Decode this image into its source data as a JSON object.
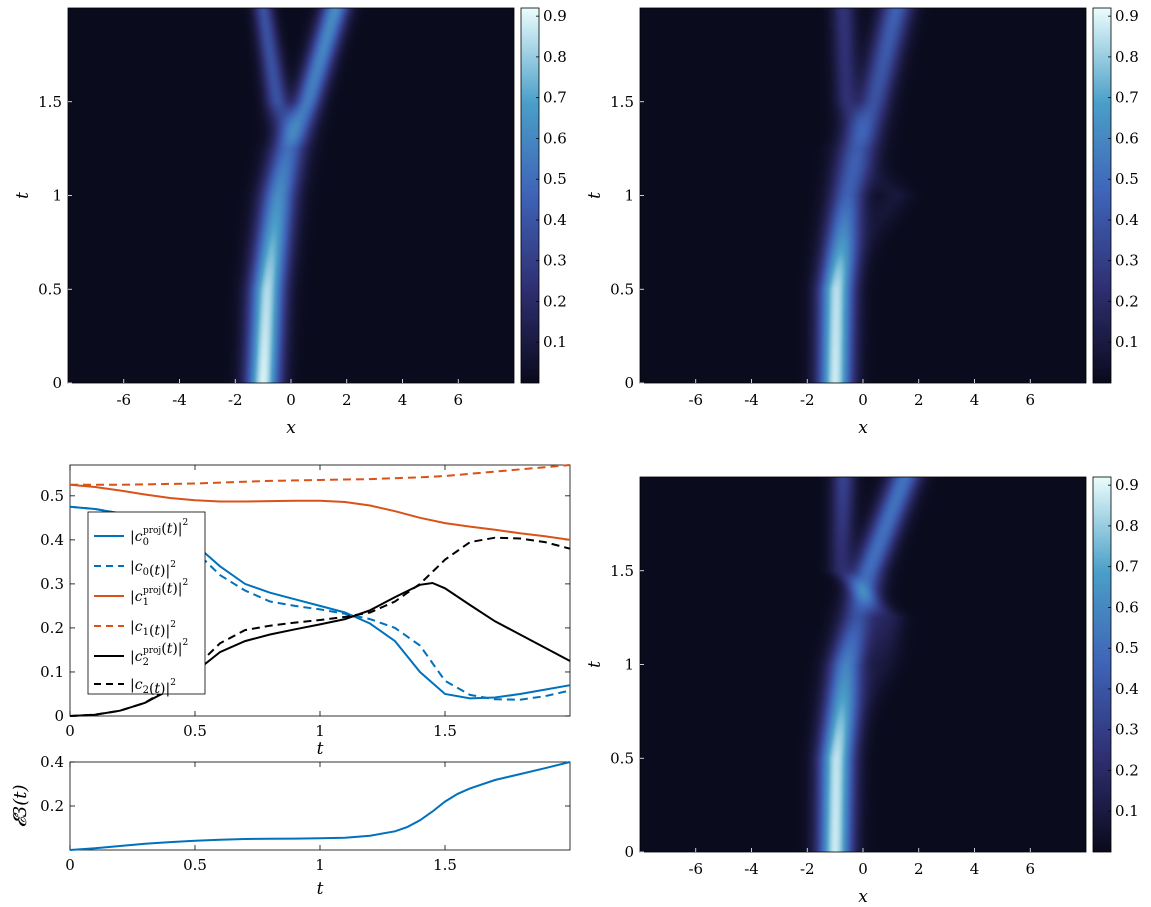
{
  "colors": {
    "c0_blue": "#0072BD",
    "c1_orange": "#D95319",
    "c2_black": "#000000",
    "colormap": [
      "#0b0b1e",
      "#2f2f72",
      "#3f63b8",
      "#4a9fc8",
      "#e8fbfb"
    ]
  },
  "chart_data": [
    {
      "id": "heatmap-top-left",
      "type": "heatmap",
      "title": "",
      "xlabel": "x",
      "ylabel": "t",
      "xlim": [
        -8,
        8
      ],
      "ylim": [
        0,
        2
      ],
      "xticks": [
        -6,
        -4,
        -2,
        0,
        2,
        4,
        6
      ],
      "yticks": [
        0,
        0.5,
        1,
        1.5
      ],
      "colorbar": {
        "ticks": [
          0.1,
          0.2,
          0.3,
          0.4,
          0.5,
          0.6,
          0.7,
          0.8,
          0.9
        ],
        "range": [
          0,
          0.92
        ]
      },
      "peaks": [
        {
          "t": 0.0,
          "components": [
            {
              "x": -1.0,
              "amp": 0.9,
              "width": 0.42
            }
          ]
        },
        {
          "t": 0.5,
          "components": [
            {
              "x": -0.85,
              "amp": 0.84,
              "width": 0.44
            }
          ]
        },
        {
          "t": 1.0,
          "components": [
            {
              "x": -0.45,
              "amp": 0.62,
              "width": 0.45
            }
          ]
        },
        {
          "t": 1.25,
          "components": [
            {
              "x": -0.1,
              "amp": 0.5,
              "width": 0.45
            }
          ]
        },
        {
          "t": 1.5,
          "components": [
            {
              "x": 0.6,
              "amp": 0.55,
              "width": 0.35
            },
            {
              "x": -0.5,
              "amp": 0.38,
              "width": 0.3
            }
          ]
        },
        {
          "t": 2.0,
          "components": [
            {
              "x": 1.6,
              "amp": 0.62,
              "width": 0.35
            },
            {
              "x": -1.0,
              "amp": 0.38,
              "width": 0.25
            }
          ]
        }
      ]
    },
    {
      "id": "heatmap-top-right",
      "type": "heatmap",
      "title": "",
      "xlabel": "x",
      "ylabel": "t",
      "xlim": [
        -8,
        8
      ],
      "ylim": [
        0,
        2
      ],
      "xticks": [
        -6,
        -4,
        -2,
        0,
        2,
        4,
        6
      ],
      "yticks": [
        0,
        0.5,
        1,
        1.5
      ],
      "colorbar": {
        "ticks": [
          0.1,
          0.2,
          0.3,
          0.4,
          0.5,
          0.6,
          0.7,
          0.8,
          0.9
        ],
        "range": [
          0,
          0.92
        ]
      },
      "peaks": [
        {
          "t": 0.0,
          "components": [
            {
              "x": -1.0,
              "amp": 0.88,
              "width": 0.42
            }
          ]
        },
        {
          "t": 0.5,
          "components": [
            {
              "x": -0.95,
              "amp": 0.85,
              "width": 0.44
            }
          ]
        },
        {
          "t": 1.0,
          "components": [
            {
              "x": -0.55,
              "amp": 0.45,
              "width": 0.45
            },
            {
              "x": 1.2,
              "amp": 0.08,
              "width": 0.4
            }
          ]
        },
        {
          "t": 1.25,
          "components": [
            {
              "x": -0.2,
              "amp": 0.42,
              "width": 0.5
            }
          ]
        },
        {
          "t": 1.5,
          "components": [
            {
              "x": 0.4,
              "amp": 0.38,
              "width": 0.4
            },
            {
              "x": -0.6,
              "amp": 0.22,
              "width": 0.3
            }
          ]
        },
        {
          "t": 2.0,
          "components": [
            {
              "x": 1.2,
              "amp": 0.45,
              "width": 0.4
            },
            {
              "x": -0.7,
              "amp": 0.25,
              "width": 0.3
            }
          ]
        }
      ]
    },
    {
      "id": "line-coefficients",
      "type": "line",
      "title": "",
      "xlabel": "t",
      "ylabel": "",
      "xlim": [
        0,
        2
      ],
      "ylim": [
        0,
        0.57
      ],
      "xticks": [
        0,
        0.5,
        1,
        1.5
      ],
      "yticks": [
        0,
        0.1,
        0.2,
        0.3,
        0.4,
        0.5
      ],
      "legend_position": "left",
      "series": [
        {
          "name": "|c0proj(t)|²",
          "color": "#0072BD",
          "dash": "solid",
          "x": [
            0,
            0.1,
            0.2,
            0.3,
            0.4,
            0.5,
            0.6,
            0.7,
            0.8,
            0.9,
            1.0,
            1.1,
            1.2,
            1.3,
            1.4,
            1.5,
            1.6,
            1.7,
            1.8,
            1.9,
            2.0
          ],
          "y": [
            0.475,
            0.47,
            0.46,
            0.44,
            0.42,
            0.39,
            0.34,
            0.3,
            0.28,
            0.265,
            0.25,
            0.235,
            0.21,
            0.17,
            0.1,
            0.05,
            0.04,
            0.042,
            0.05,
            0.06,
            0.07
          ]
        },
        {
          "name": "|c0(t)|²",
          "color": "#0072BD",
          "dash": "dashed",
          "x": [
            0,
            0.1,
            0.2,
            0.3,
            0.4,
            0.5,
            0.6,
            0.7,
            0.8,
            0.9,
            1.0,
            1.1,
            1.2,
            1.3,
            1.4,
            1.5,
            1.6,
            1.7,
            1.8,
            1.9,
            2.0
          ],
          "y": [
            0.475,
            0.47,
            0.46,
            0.44,
            0.41,
            0.375,
            0.32,
            0.285,
            0.26,
            0.25,
            0.242,
            0.232,
            0.22,
            0.2,
            0.16,
            0.08,
            0.048,
            0.038,
            0.037,
            0.045,
            0.058
          ]
        },
        {
          "name": "|c1proj(t)|²",
          "color": "#D95319",
          "dash": "solid",
          "x": [
            0,
            0.1,
            0.2,
            0.3,
            0.4,
            0.5,
            0.6,
            0.7,
            0.8,
            0.9,
            1.0,
            1.1,
            1.2,
            1.3,
            1.4,
            1.5,
            1.6,
            1.7,
            1.8,
            1.9,
            2.0
          ],
          "y": [
            0.525,
            0.52,
            0.512,
            0.503,
            0.495,
            0.49,
            0.487,
            0.487,
            0.488,
            0.489,
            0.489,
            0.486,
            0.478,
            0.465,
            0.45,
            0.438,
            0.43,
            0.423,
            0.415,
            0.408,
            0.4
          ]
        },
        {
          "name": "|c1(t)|²",
          "color": "#D95319",
          "dash": "dashed",
          "x": [
            0,
            0.1,
            0.2,
            0.3,
            0.4,
            0.5,
            0.6,
            0.7,
            0.8,
            0.9,
            1.0,
            1.1,
            1.2,
            1.3,
            1.4,
            1.5,
            1.6,
            1.7,
            1.8,
            1.9,
            2.0
          ],
          "y": [
            0.525,
            0.525,
            0.525,
            0.526,
            0.527,
            0.528,
            0.53,
            0.532,
            0.534,
            0.535,
            0.536,
            0.537,
            0.538,
            0.54,
            0.542,
            0.545,
            0.55,
            0.555,
            0.56,
            0.565,
            0.57
          ]
        },
        {
          "name": "|c2proj(t)|²",
          "color": "#000000",
          "dash": "solid",
          "x": [
            0,
            0.1,
            0.2,
            0.3,
            0.4,
            0.5,
            0.6,
            0.7,
            0.8,
            0.9,
            1.0,
            1.1,
            1.2,
            1.3,
            1.4,
            1.45,
            1.5,
            1.6,
            1.7,
            1.8,
            1.9,
            2.0
          ],
          "y": [
            0.0,
            0.003,
            0.012,
            0.03,
            0.06,
            0.1,
            0.145,
            0.17,
            0.185,
            0.197,
            0.208,
            0.22,
            0.24,
            0.27,
            0.298,
            0.302,
            0.29,
            0.252,
            0.215,
            0.185,
            0.155,
            0.125
          ]
        },
        {
          "name": "|c2(t)|²",
          "color": "#000000",
          "dash": "dashed",
          "x": [
            0,
            0.1,
            0.2,
            0.3,
            0.4,
            0.5,
            0.6,
            0.7,
            0.8,
            0.9,
            1.0,
            1.1,
            1.2,
            1.3,
            1.4,
            1.5,
            1.6,
            1.7,
            1.8,
            1.9,
            2.0
          ],
          "y": [
            0.0,
            0.003,
            0.012,
            0.03,
            0.065,
            0.11,
            0.165,
            0.195,
            0.205,
            0.212,
            0.218,
            0.225,
            0.235,
            0.26,
            0.3,
            0.355,
            0.395,
            0.405,
            0.403,
            0.395,
            0.38
          ]
        }
      ]
    },
    {
      "id": "line-error",
      "type": "line",
      "title": "",
      "xlabel": "t",
      "ylabel": "𝓔3(t)",
      "xlim": [
        0,
        2
      ],
      "ylim": [
        0,
        0.4
      ],
      "xticks": [
        0,
        0.5,
        1,
        1.5
      ],
      "yticks": [
        0.2,
        0.4
      ],
      "series": [
        {
          "name": "",
          "color": "#0072BD",
          "dash": "solid",
          "x": [
            0,
            0.1,
            0.2,
            0.3,
            0.4,
            0.5,
            0.6,
            0.7,
            0.8,
            0.9,
            1.0,
            1.1,
            1.2,
            1.3,
            1.35,
            1.4,
            1.45,
            1.5,
            1.55,
            1.6,
            1.7,
            1.8,
            1.9,
            2.0
          ],
          "y": [
            0.0,
            0.008,
            0.018,
            0.028,
            0.036,
            0.042,
            0.047,
            0.05,
            0.051,
            0.052,
            0.053,
            0.056,
            0.065,
            0.085,
            0.105,
            0.135,
            0.175,
            0.22,
            0.255,
            0.28,
            0.318,
            0.345,
            0.372,
            0.4
          ]
        }
      ]
    },
    {
      "id": "heatmap-bottom-right",
      "type": "heatmap",
      "title": "",
      "xlabel": "x",
      "ylabel": "t",
      "xlim": [
        -8,
        8
      ],
      "ylim": [
        0,
        2
      ],
      "xticks": [
        -6,
        -4,
        -2,
        0,
        2,
        4,
        6
      ],
      "yticks": [
        0,
        0.5,
        1,
        1.5
      ],
      "colorbar": {
        "ticks": [
          0.1,
          0.2,
          0.3,
          0.4,
          0.5,
          0.6,
          0.7,
          0.8,
          0.9
        ],
        "range": [
          0,
          0.92
        ]
      },
      "peaks": [
        {
          "t": 0.0,
          "components": [
            {
              "x": -1.0,
              "amp": 0.88,
              "width": 0.42
            }
          ]
        },
        {
          "t": 0.5,
          "components": [
            {
              "x": -0.95,
              "amp": 0.86,
              "width": 0.44
            }
          ]
        },
        {
          "t": 1.0,
          "components": [
            {
              "x": -0.6,
              "amp": 0.58,
              "width": 0.45
            },
            {
              "x": 0.7,
              "amp": 0.08,
              "width": 0.4
            }
          ]
        },
        {
          "t": 1.25,
          "components": [
            {
              "x": -0.2,
              "amp": 0.38,
              "width": 0.45
            },
            {
              "x": 0.9,
              "amp": 0.15,
              "width": 0.4
            }
          ]
        },
        {
          "t": 1.5,
          "components": [
            {
              "x": 0.2,
              "amp": 0.5,
              "width": 0.4
            },
            {
              "x": -0.8,
              "amp": 0.2,
              "width": 0.3
            }
          ]
        },
        {
          "t": 2.0,
          "components": [
            {
              "x": 1.5,
              "amp": 0.52,
              "width": 0.4
            },
            {
              "x": -0.7,
              "amp": 0.32,
              "width": 0.3
            }
          ]
        }
      ]
    }
  ],
  "legend": {
    "entries": [
      {
        "base": "c",
        "sub": "0",
        "sup": "proj",
        "paren": "(t)",
        "power": "2",
        "abs": "|",
        "series": 0
      },
      {
        "base": "c",
        "sub": "0",
        "sup": "",
        "paren": "(t)",
        "power": "2",
        "abs": "|",
        "series": 1
      },
      {
        "base": "c",
        "sub": "1",
        "sup": "proj",
        "paren": "(t)",
        "power": "2",
        "abs": "|",
        "series": 2
      },
      {
        "base": "c",
        "sub": "1",
        "sup": "",
        "paren": "(t)",
        "power": "2",
        "abs": "|",
        "series": 3
      },
      {
        "base": "c",
        "sub": "2",
        "sup": "proj",
        "paren": "(t)",
        "power": "2",
        "abs": "|",
        "series": 4
      },
      {
        "base": "c",
        "sub": "2",
        "sup": "",
        "paren": "(t)",
        "power": "2",
        "abs": "|",
        "series": 5
      }
    ]
  }
}
